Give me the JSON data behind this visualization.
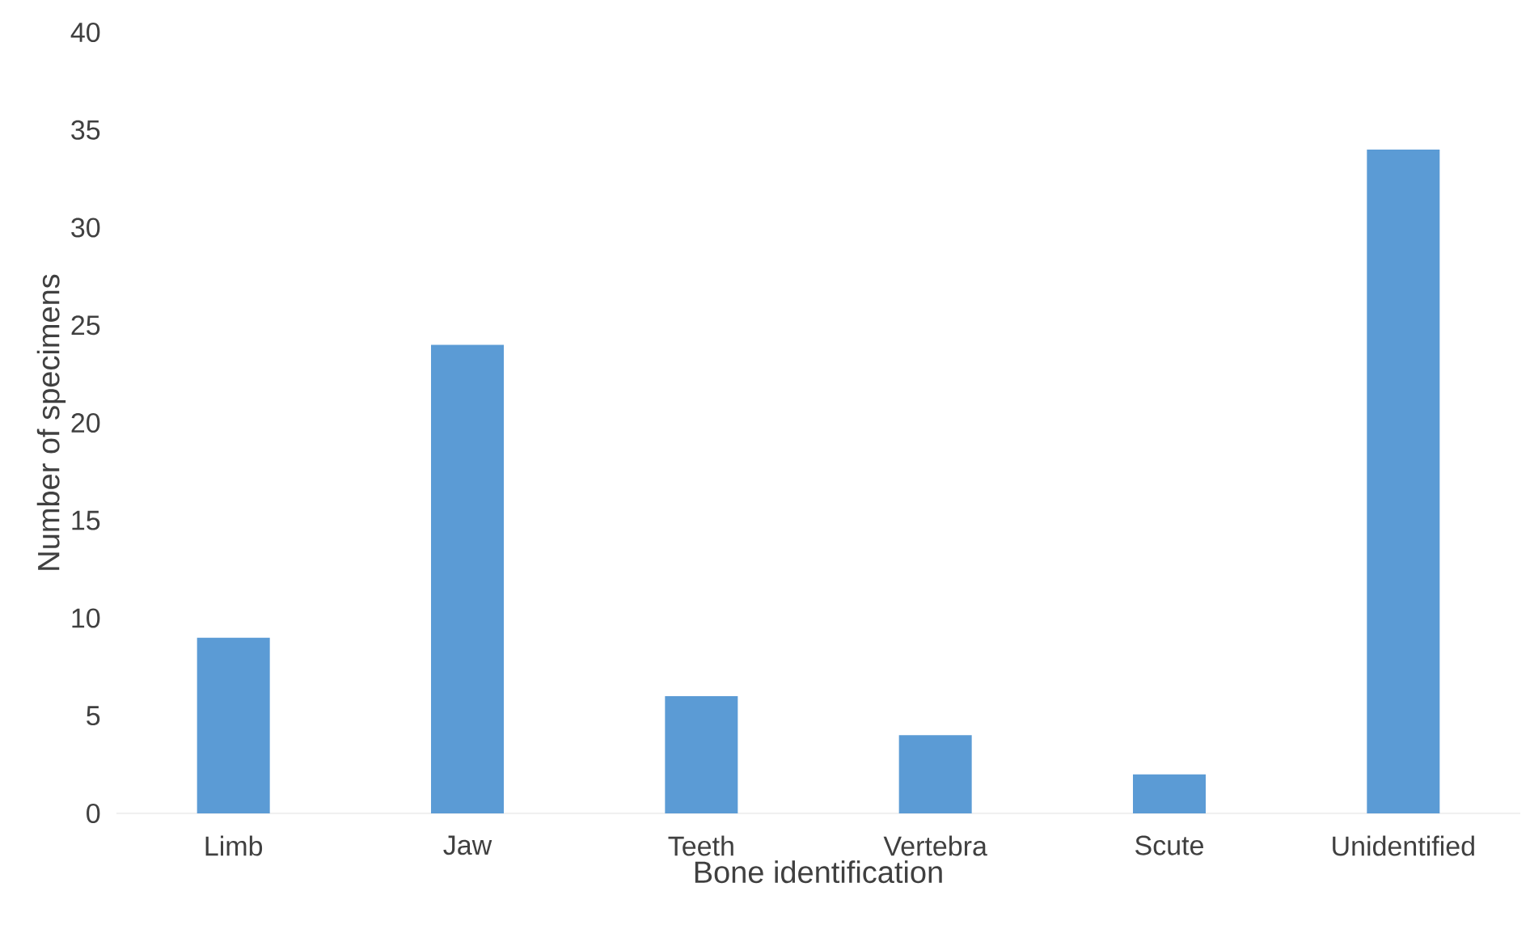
{
  "chart_data": {
    "type": "bar",
    "xlabel": "Bone identification",
    "ylabel": "Number of specimens",
    "categories": [
      "Limb",
      "Jaw",
      "Teeth",
      "Vertebra",
      "Scute",
      "Unidentified"
    ],
    "values": [
      9,
      24,
      6,
      4,
      2,
      34
    ],
    "color": "#5b9bd5",
    "ylim": [
      0,
      40
    ],
    "yticks": [
      0,
      5,
      10,
      15,
      20,
      25,
      30,
      35,
      40
    ]
  }
}
